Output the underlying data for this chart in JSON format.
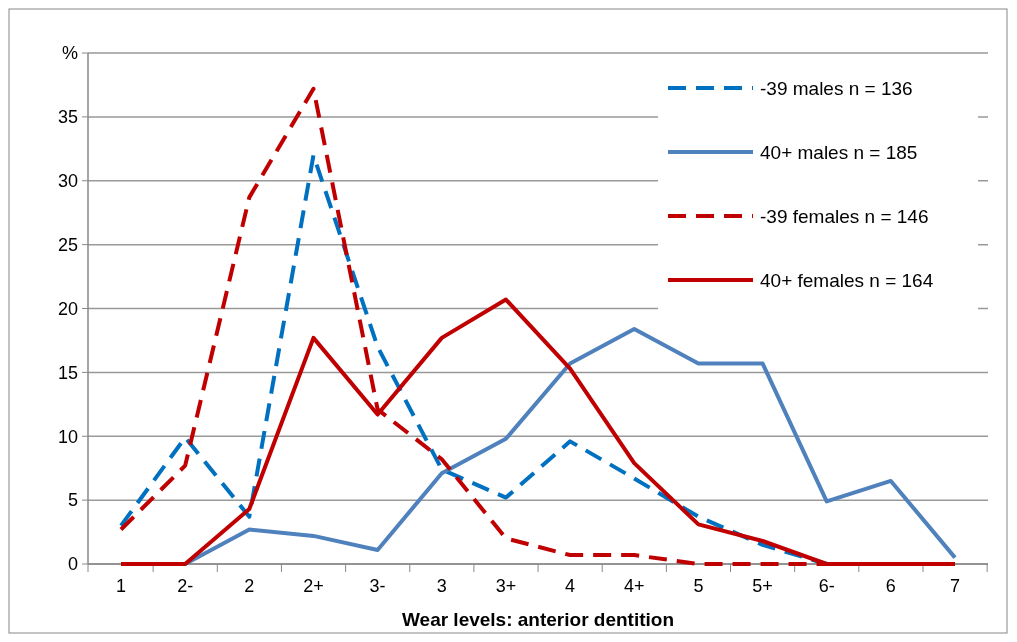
{
  "chart_data": {
    "type": "line",
    "xlabel": "Wear levels: anterior dentition",
    "categories": [
      "1",
      "2-",
      "2",
      "2+",
      "3-",
      "3",
      "3+",
      "4",
      "4+",
      "5",
      "5+",
      "6-",
      "6",
      "7"
    ],
    "ylim": [
      0,
      40
    ],
    "yticks": [
      0,
      5,
      10,
      15,
      20,
      25,
      30,
      35,
      {
        "value": 40,
        "label": "%"
      }
    ],
    "grid": "y",
    "legend": "top right",
    "series": [
      {
        "name": "-39 males n = 136",
        "color": "#0070c0",
        "line_style": "dashed",
        "values": [
          3,
          9.9,
          3.7,
          32,
          17,
          7.4,
          5.2,
          9.6,
          6.7,
          3.7,
          1.5,
          0,
          0,
          0
        ]
      },
      {
        "name": "40+ males n = 185",
        "color": "#4f81bd",
        "line_style": "solid",
        "values": [
          0,
          0,
          2.7,
          2.2,
          1.1,
          7.1,
          9.8,
          15.7,
          18.4,
          15.7,
          15.7,
          4.9,
          6.5,
          0.5
        ]
      },
      {
        "name": "-39 females n = 146",
        "color": "#c00000",
        "line_style": "dashed",
        "values": [
          2.7,
          7.7,
          28.7,
          37.2,
          12.1,
          8.2,
          2,
          0.7,
          0.7,
          0,
          0,
          0,
          0,
          0
        ]
      },
      {
        "name": "40+ females n = 164",
        "color": "#c00000",
        "line_style": "solid",
        "values": [
          0,
          0,
          4.3,
          17.7,
          11.7,
          17.7,
          20.7,
          15.3,
          7.9,
          3.1,
          1.8,
          0,
          0,
          0
        ]
      }
    ]
  }
}
